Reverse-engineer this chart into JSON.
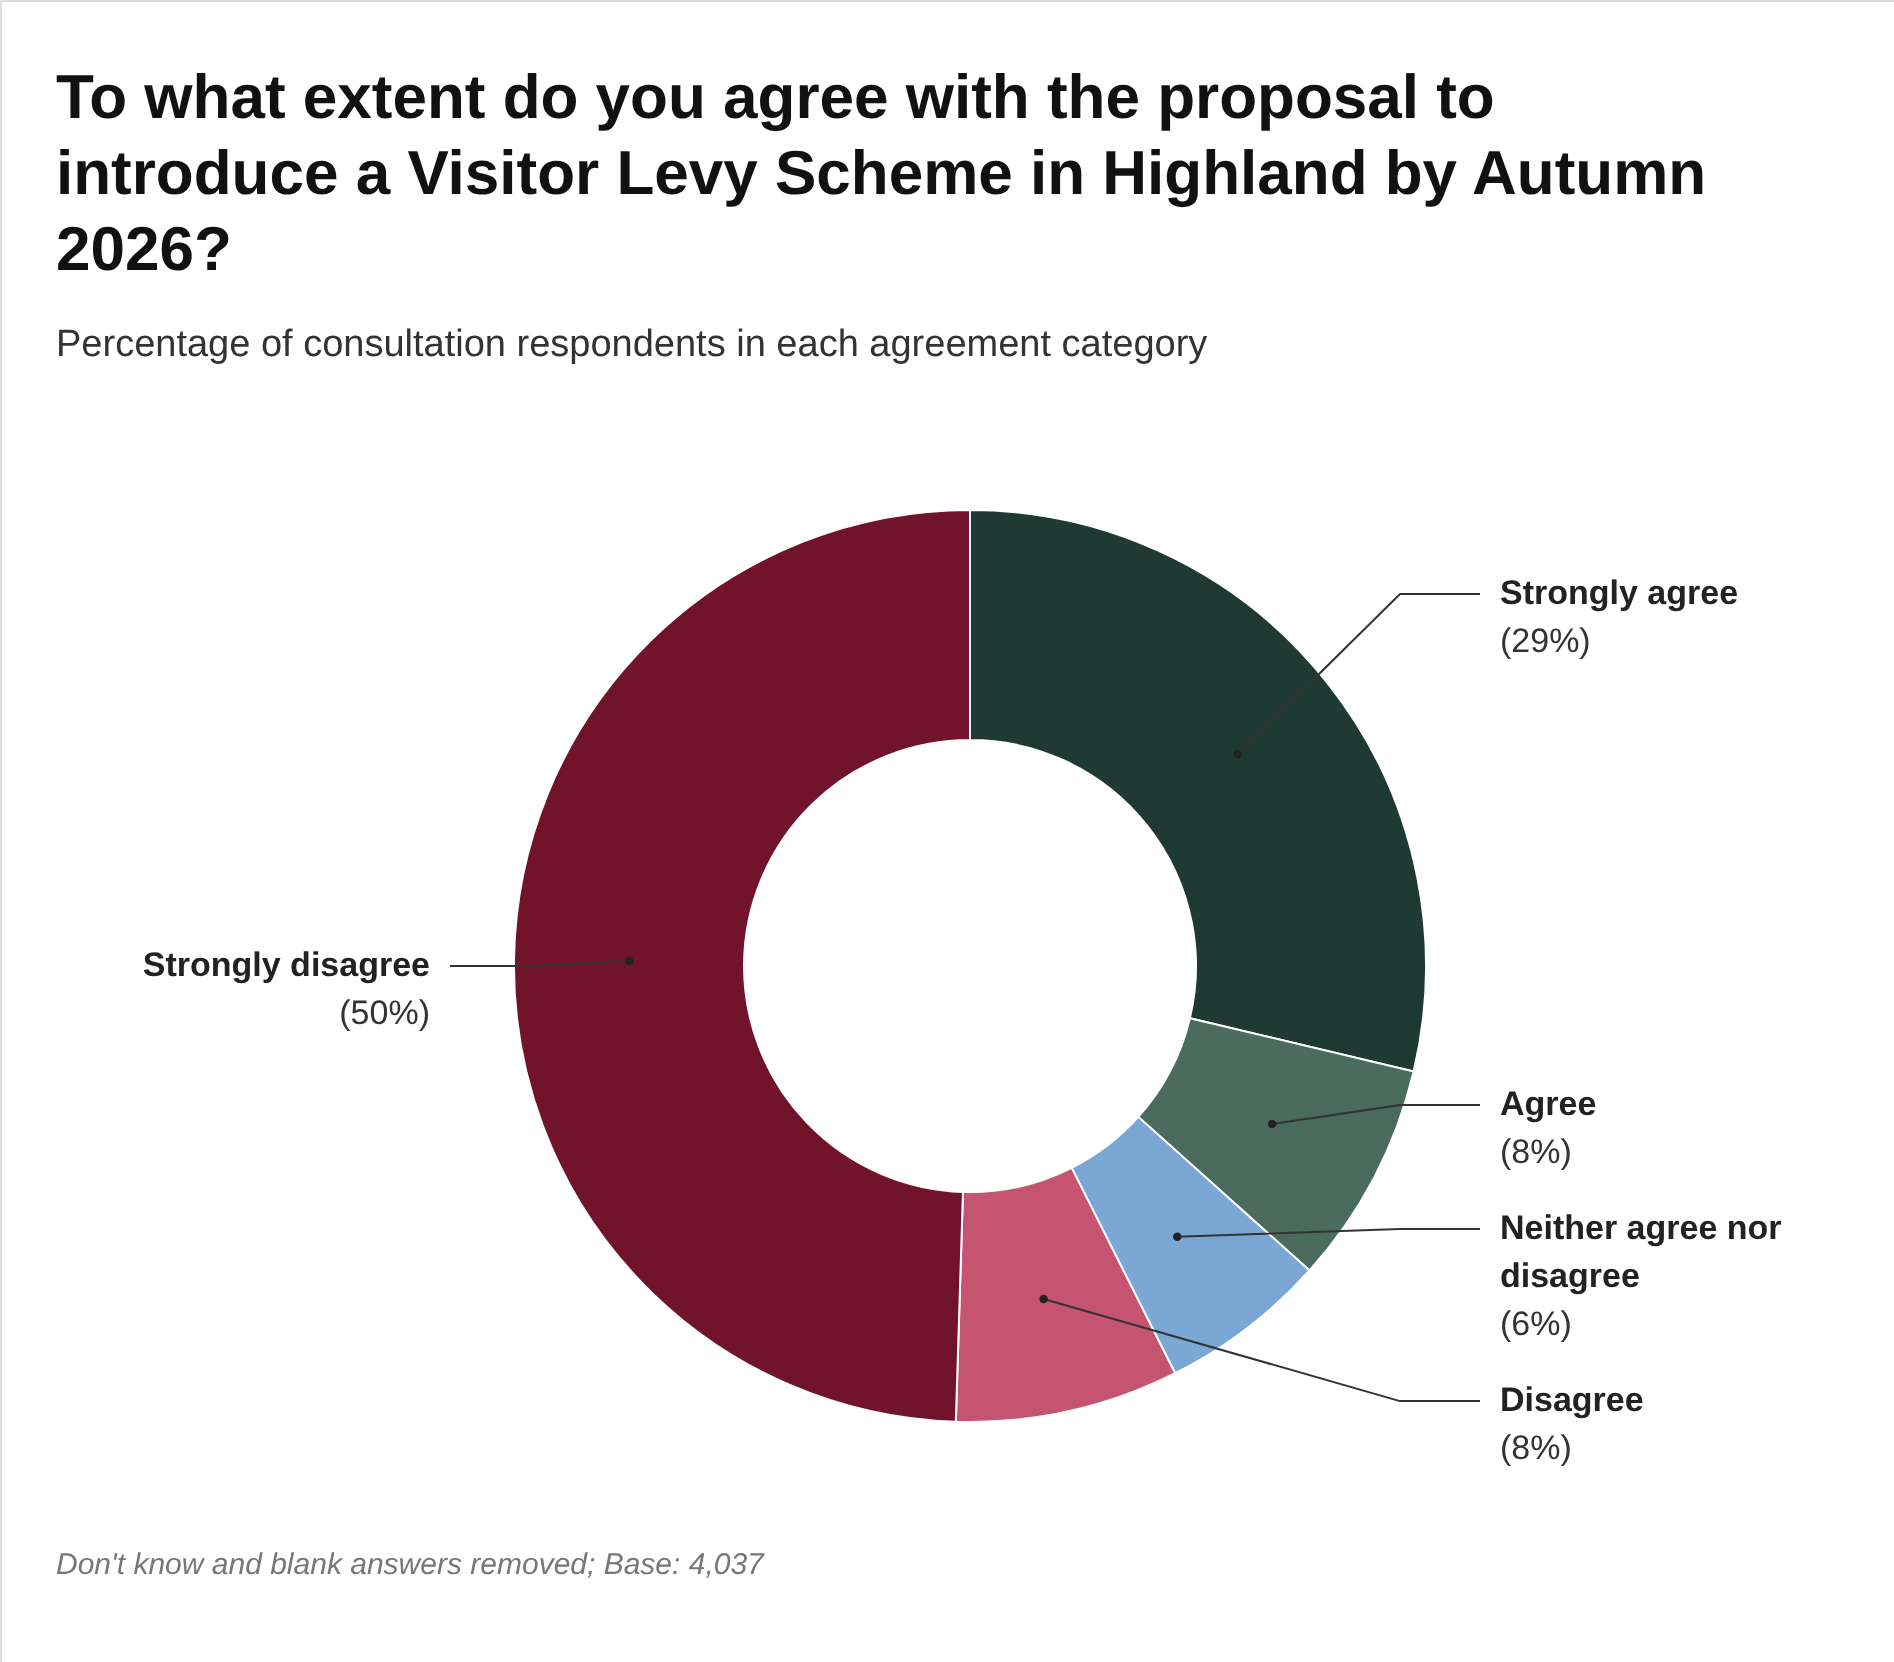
{
  "chart_data": {
    "type": "donut",
    "title": "To what extent do you agree with the proposal to introduce a Visitor Levy Scheme in Highland by Autumn 2026?",
    "subtitle": "Percentage of consultation respondents in each agreement category",
    "categories": [
      "Strongly agree",
      "Agree",
      "Neither agree nor disagree",
      "Disagree",
      "Strongly disagree"
    ],
    "values": [
      29,
      8,
      6,
      8,
      50
    ],
    "value_labels": [
      "(29%)",
      "(8%)",
      "(6%)",
      "(8%)",
      "(50%)"
    ],
    "colors": [
      "#1f3a32",
      "#4b6b5f",
      "#7ba7d4",
      "#c45470",
      "#71132b"
    ],
    "annotations": [
      "Don't know and blank answers removed; Base: 4,037"
    ]
  }
}
